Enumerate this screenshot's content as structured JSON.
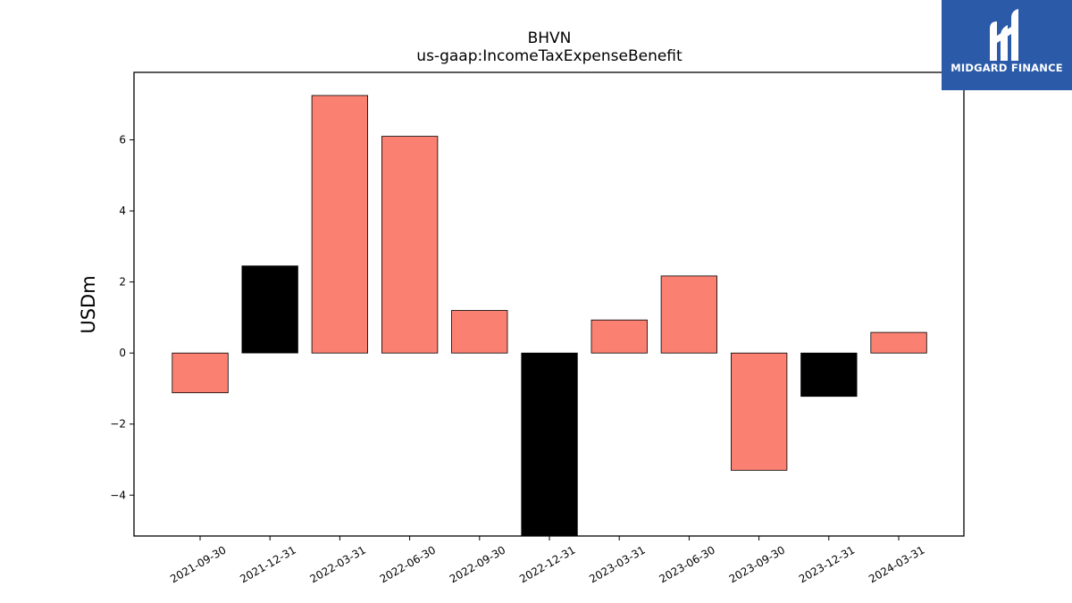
{
  "brand": {
    "name": "MIDGARD FINANCE",
    "logo_icon": "midgard-m-icon",
    "background_color": "#2a5aa8"
  },
  "chart_data": {
    "type": "bar",
    "title": "BHVN",
    "subtitle": "us-gaap:IncomeTaxExpenseBenefit",
    "xlabel": "",
    "ylabel": "USDm",
    "categories": [
      "2021-09-30",
      "2021-12-31",
      "2022-03-31",
      "2022-06-30",
      "2022-09-30",
      "2022-12-31",
      "2023-03-31",
      "2023-06-30",
      "2023-09-30",
      "2023-12-31",
      "2024-03-31"
    ],
    "values": [
      -1.12,
      2.45,
      7.25,
      6.1,
      1.2,
      -5.15,
      0.93,
      2.17,
      -3.3,
      -1.22,
      0.58
    ],
    "bar_colors": [
      "#fa8072",
      "#000000",
      "#fa8072",
      "#fa8072",
      "#fa8072",
      "#000000",
      "#fa8072",
      "#fa8072",
      "#fa8072",
      "#000000",
      "#fa8072"
    ],
    "ylim": [
      -5.15,
      7.9
    ],
    "yticks": [
      -4,
      -2,
      0,
      2,
      4,
      6
    ],
    "ytick_labels": [
      "−4",
      "−2",
      "0",
      "2",
      "4",
      "6"
    ],
    "grid": false,
    "legend": "none"
  }
}
